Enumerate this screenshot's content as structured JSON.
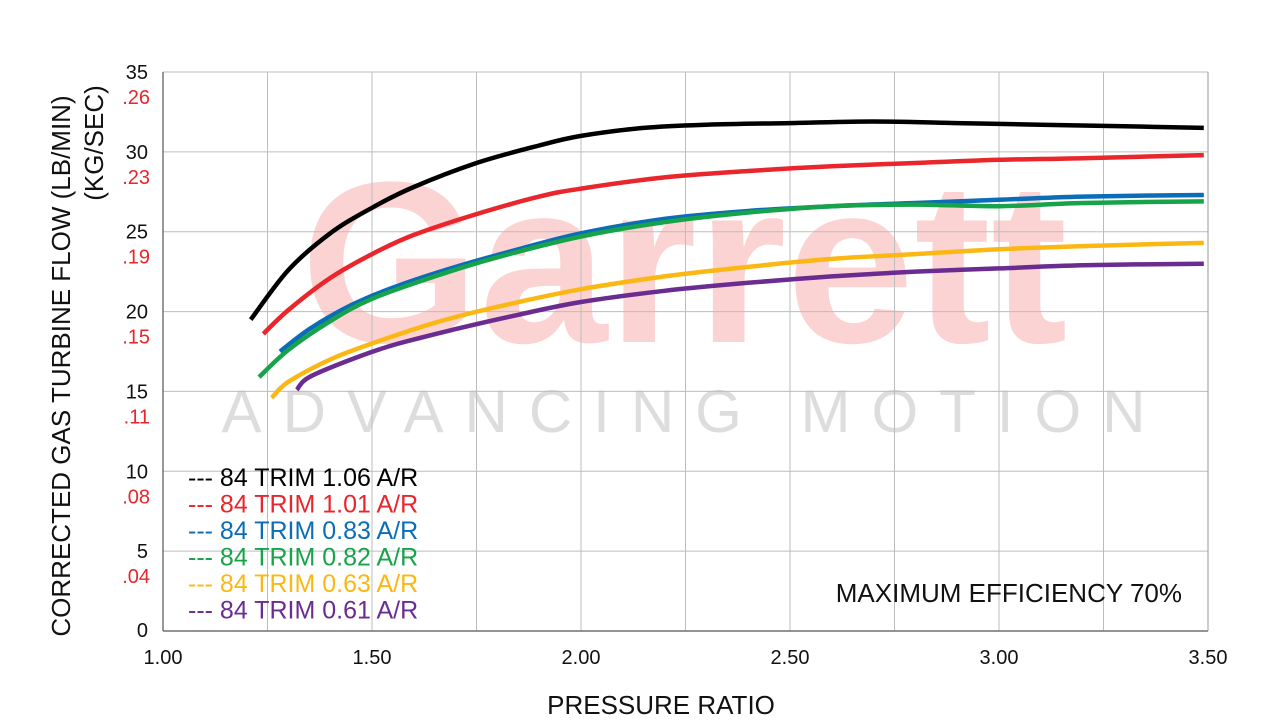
{
  "chart_data": {
    "type": "line",
    "xlabel": "PRESSURE RATIO",
    "ylabel": "CORRECTED GAS TURBINE FLOW (LB/MIN)",
    "ylabel_secondary": "(KG/SEC)",
    "xlim": [
      1.0,
      3.5
    ],
    "ylim": [
      0,
      35
    ],
    "grid": true,
    "legend_position": "lower-left",
    "x_ticks": [
      "1.00",
      "1.50",
      "2.00",
      "2.50",
      "3.00",
      "3.50"
    ],
    "y_ticks": [
      "0",
      "5",
      "10",
      "15",
      "20",
      "25",
      "30",
      "35"
    ],
    "y_ticks_secondary": [
      ".04",
      ".08",
      ".11",
      ".15",
      ".19",
      ".23",
      ".26"
    ],
    "annotation": "MAXIMUM EFFICIENCY 70%",
    "watermark": {
      "brand": "Garrett",
      "tagline": "ADVANCING MOTION"
    },
    "colors": {
      "axis_text": "#111111",
      "secondary_axis_text": "#e8262c",
      "grid": "#bdbdbd",
      "watermark_main": "#fbd3d2",
      "watermark_sub": "#dddddd"
    },
    "series": [
      {
        "name": "84 TRIM 1.06 A/R",
        "legend_prefix": "---",
        "color": "#000000",
        "x": [
          1.21,
          1.3,
          1.4,
          1.5,
          1.6,
          1.75,
          1.9,
          2.0,
          2.15,
          2.3,
          2.5,
          2.7,
          2.9,
          3.1,
          3.3,
          3.49
        ],
        "y": [
          19.5,
          22.6,
          24.9,
          26.5,
          27.8,
          29.3,
          30.4,
          31.0,
          31.5,
          31.7,
          31.8,
          31.9,
          31.8,
          31.7,
          31.6,
          31.5
        ]
      },
      {
        "name": "84 TRIM 1.01 A/R",
        "legend_prefix": "---",
        "color": "#e8262c",
        "x": [
          1.24,
          1.3,
          1.4,
          1.5,
          1.6,
          1.75,
          1.9,
          2.0,
          2.2,
          2.4,
          2.6,
          2.8,
          3.0,
          3.2,
          3.49
        ],
        "y": [
          18.6,
          20.1,
          22.1,
          23.6,
          24.8,
          26.1,
          27.2,
          27.7,
          28.4,
          28.8,
          29.1,
          29.3,
          29.5,
          29.6,
          29.8
        ]
      },
      {
        "name": "84 TRIM 0.83 A/R",
        "legend_prefix": "---",
        "color": "#0b6db7",
        "x": [
          1.28,
          1.35,
          1.45,
          1.55,
          1.7,
          1.85,
          2.0,
          2.2,
          2.4,
          2.6,
          2.8,
          3.0,
          3.2,
          3.49
        ],
        "y": [
          17.5,
          18.9,
          20.4,
          21.5,
          22.8,
          23.9,
          24.9,
          25.8,
          26.3,
          26.6,
          26.8,
          27.0,
          27.2,
          27.3
        ]
      },
      {
        "name": "84 TRIM 0.82 A/R",
        "legend_prefix": "---",
        "color": "#17a34a",
        "x": [
          1.23,
          1.3,
          1.4,
          1.5,
          1.65,
          1.8,
          2.0,
          2.2,
          2.4,
          2.6,
          2.8,
          3.0,
          3.2,
          3.49
        ],
        "y": [
          15.9,
          17.6,
          19.4,
          20.8,
          22.2,
          23.4,
          24.7,
          25.6,
          26.2,
          26.6,
          26.7,
          26.6,
          26.8,
          26.9
        ]
      },
      {
        "name": "84 TRIM 0.63 A/R",
        "legend_prefix": "---",
        "color": "#fbb814",
        "x": [
          1.26,
          1.3,
          1.4,
          1.5,
          1.65,
          1.8,
          2.0,
          2.2,
          2.4,
          2.6,
          2.8,
          3.0,
          3.2,
          3.49
        ],
        "y": [
          14.6,
          15.6,
          17.0,
          18.0,
          19.3,
          20.3,
          21.4,
          22.2,
          22.8,
          23.3,
          23.6,
          23.9,
          24.1,
          24.3
        ]
      },
      {
        "name": "84 TRIM 0.61 A/R",
        "legend_prefix": "---",
        "color": "#6a2c91",
        "x": [
          1.32,
          1.35,
          1.45,
          1.55,
          1.7,
          1.85,
          2.0,
          2.2,
          2.4,
          2.6,
          2.8,
          3.0,
          3.2,
          3.49
        ],
        "y": [
          15.1,
          15.9,
          17.0,
          17.9,
          18.9,
          19.8,
          20.6,
          21.3,
          21.8,
          22.2,
          22.5,
          22.7,
          22.9,
          23.0
        ]
      }
    ]
  }
}
